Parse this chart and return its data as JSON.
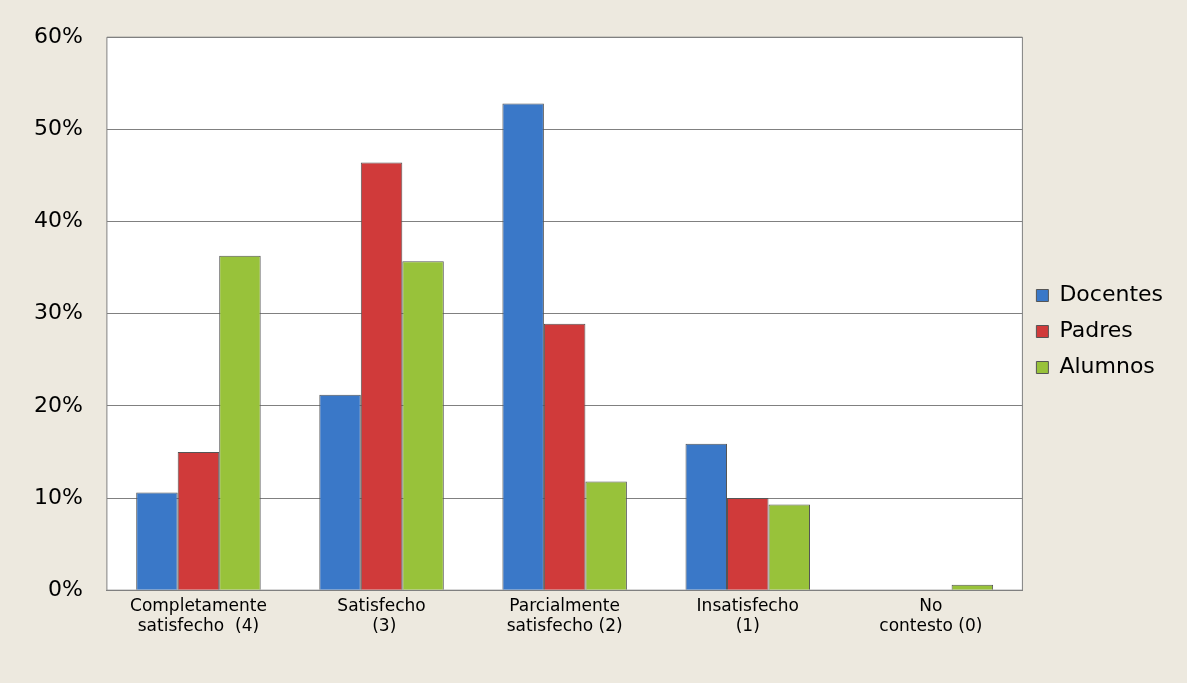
{
  "chart_data": {
    "type": "bar",
    "categories": [
      "Completamente satisfecho  (4)",
      "Satisfecho  (3)",
      "Parcialmente satisfecho (2)",
      "Insatisfecho (1)",
      "No contesto (0)"
    ],
    "series": [
      {
        "name": "Docentes",
        "color": "#3a78c8",
        "values": [
          10.6,
          21.2,
          52.8,
          15.9,
          0
        ]
      },
      {
        "name": "Padres",
        "color": "#d03a3a",
        "values": [
          15.0,
          46.4,
          28.9,
          10.0,
          0
        ]
      },
      {
        "name": "Alumnos",
        "color": "#98c23a",
        "values": [
          36.3,
          35.7,
          11.8,
          9.3,
          0.6
        ]
      }
    ],
    "ylim": [
      0,
      60
    ],
    "yticks": [
      {
        "value": 0,
        "label": "0%"
      },
      {
        "value": 10,
        "label": "10%"
      },
      {
        "value": 20,
        "label": "20%"
      },
      {
        "value": 30,
        "label": "30%"
      },
      {
        "value": 40,
        "label": "40%"
      },
      {
        "value": 50,
        "label": "50%"
      },
      {
        "value": 60,
        "label": "60%"
      }
    ],
    "grid": "y",
    "legend": "right"
  }
}
